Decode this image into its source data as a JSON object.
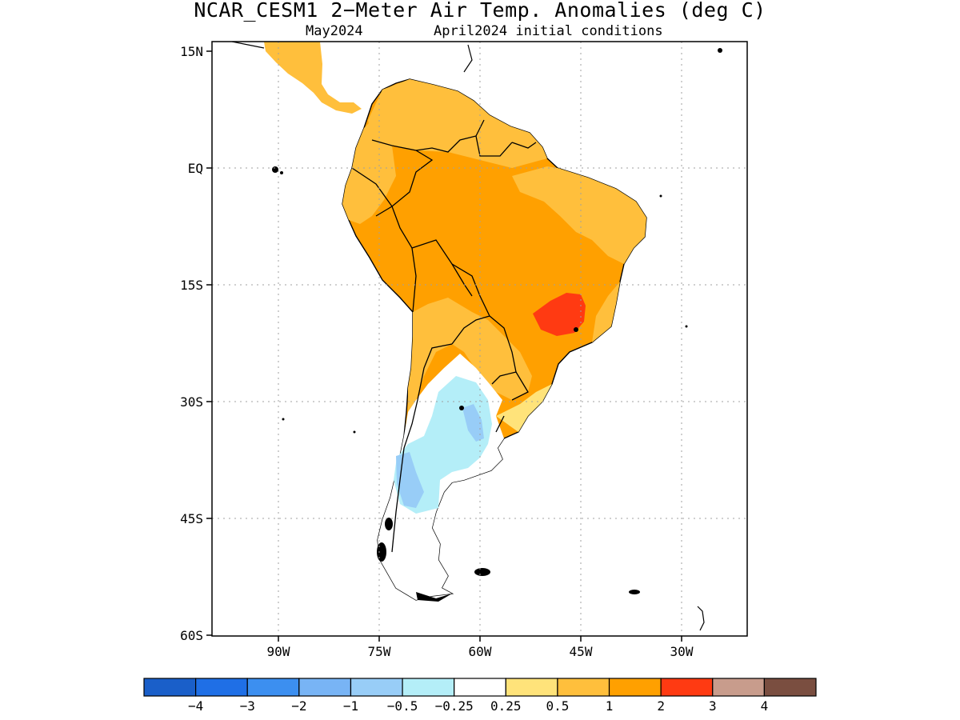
{
  "title": "NCAR_CESM1 2−Meter Air Temp. Anomalies (deg C)",
  "subtitle_left": "May2024",
  "subtitle_right": "April2024 initial conditions",
  "lat_labels": [
    "15N",
    "EQ",
    "15S",
    "30S",
    "45S",
    "60S"
  ],
  "lon_labels": [
    "90W",
    "75W",
    "60W",
    "45W",
    "30W"
  ],
  "colorbar": {
    "colors": [
      "#1a5fc9",
      "#1f6fe6",
      "#3c8ff0",
      "#78b4f5",
      "#98cdf7",
      "#b4eef8",
      "#ffffff",
      "#ffe37a",
      "#ffbf3c",
      "#ffa000",
      "#ff3a12",
      "#c89c8c",
      "#7a4e40"
    ],
    "labels": [
      "−4",
      "−3",
      "−2",
      "−1",
      "−0.5",
      "−0.25",
      "0.25",
      "0.5",
      "1",
      "2",
      "3",
      "4"
    ]
  }
}
